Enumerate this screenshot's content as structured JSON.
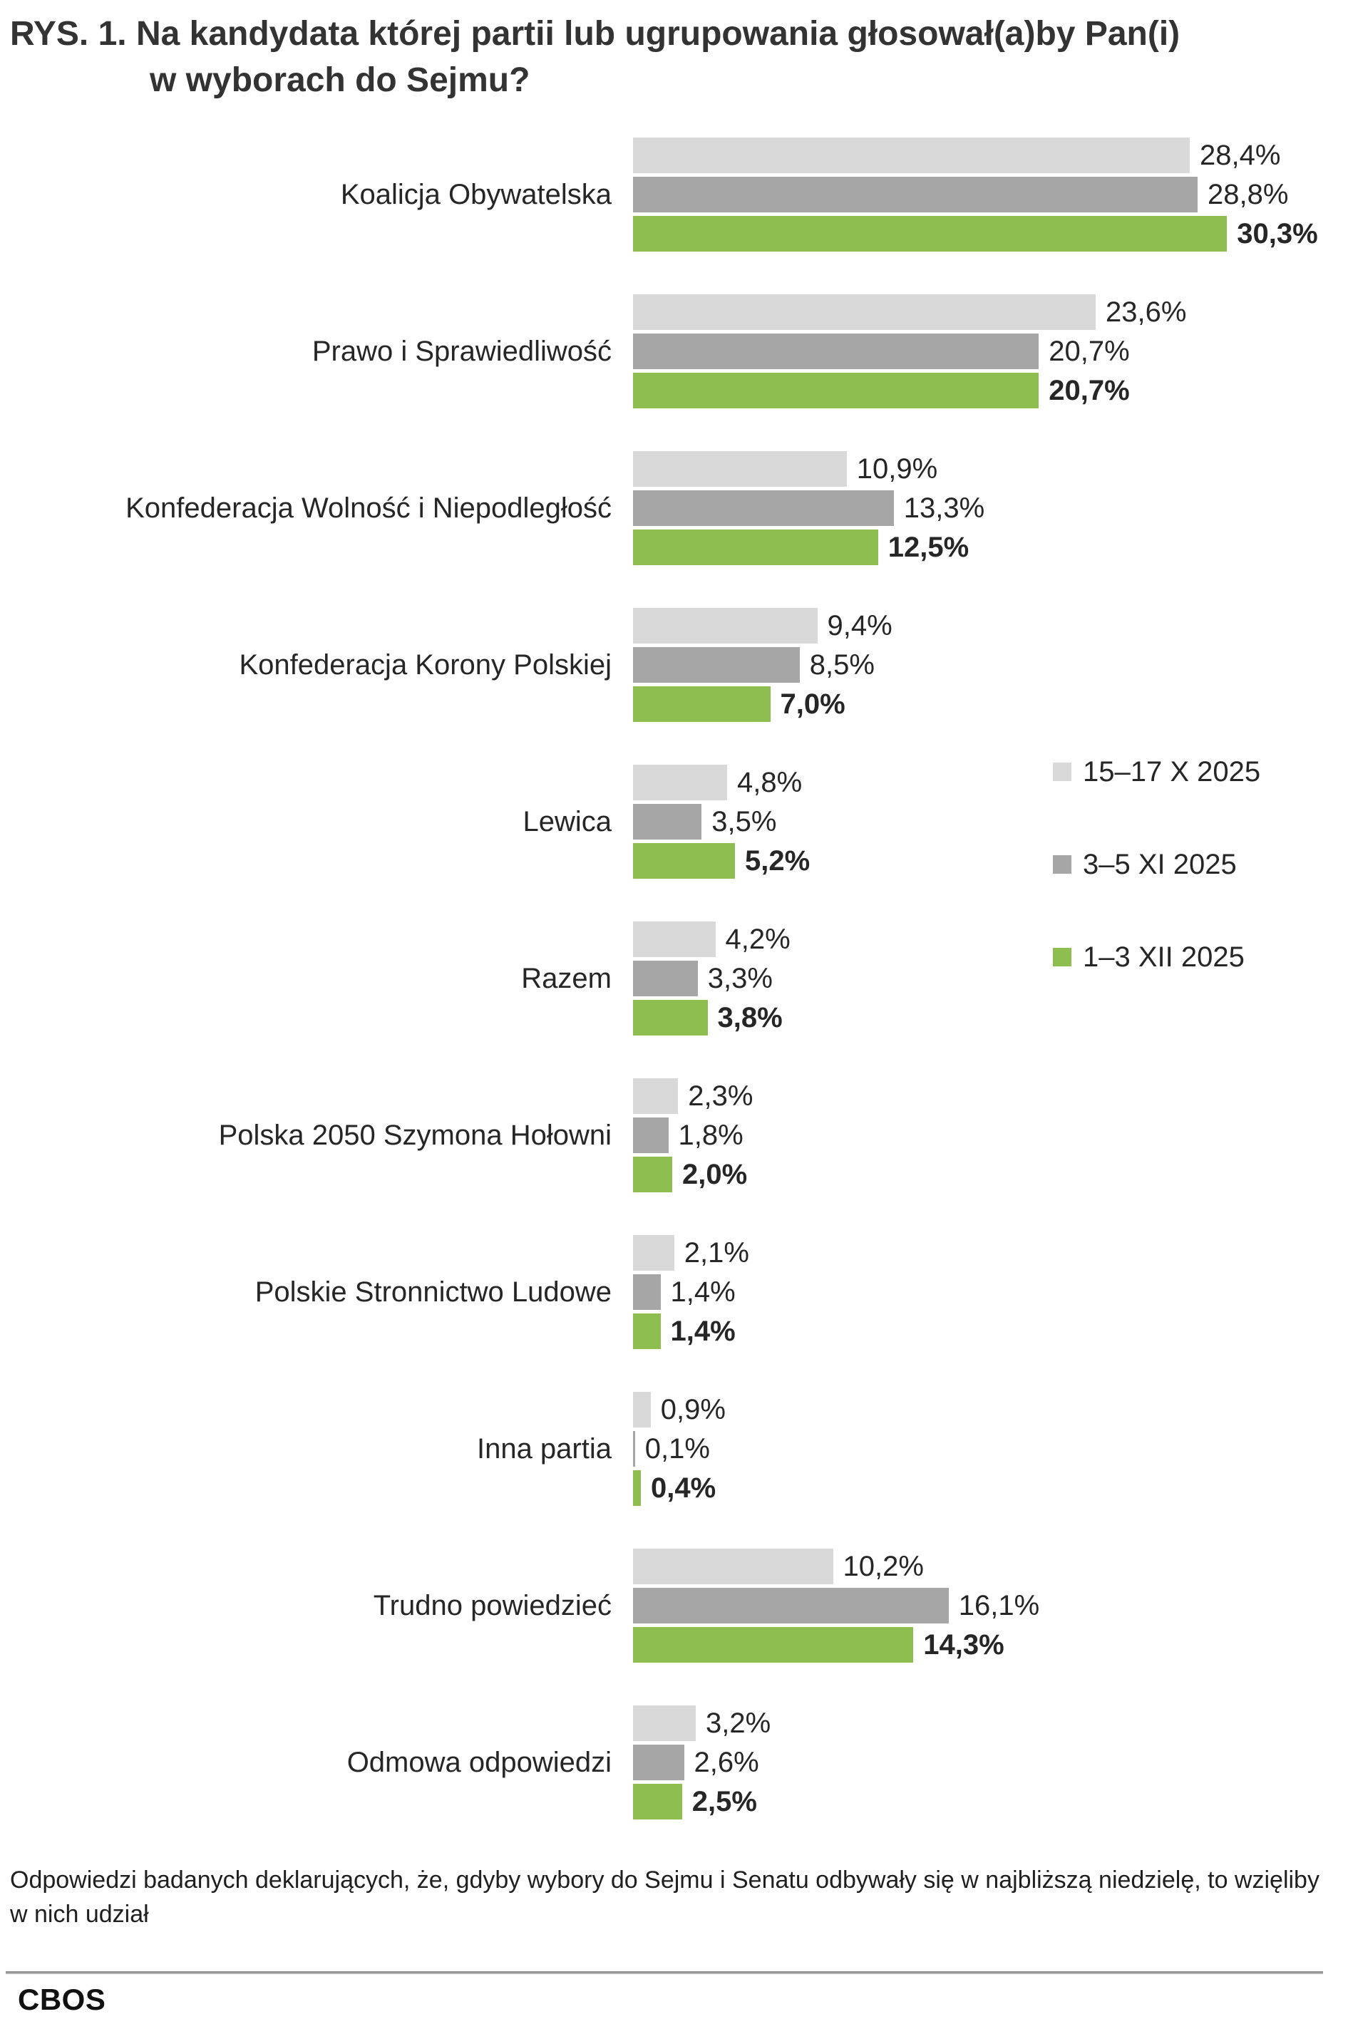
{
  "title": {
    "line1": "RYS. 1. Na kandydata której partii lub ugrupowania głosował(a)by Pan(i)",
    "line2": "w wyborach do Sejmu?"
  },
  "chart_data": {
    "type": "bar",
    "orientation": "horizontal",
    "unit": "%",
    "decimal_separator": ",",
    "xlim": [
      0,
      35
    ],
    "grid": false,
    "legend_position": "right-middle",
    "categories": [
      "Koalicja Obywatelska",
      "Prawo i Sprawiedliwość",
      "Konfederacja Wolność i Niepodległość",
      "Konfederacja Korony Polskiej",
      "Lewica",
      "Razem",
      "Polska 2050 Szymona Hołowni",
      "Polskie Stronnictwo Ludowe",
      "Inna partia",
      "Trudno powiedzieć",
      "Odmowa odpowiedzi"
    ],
    "series": [
      {
        "name": "15–17 X 2025",
        "color": "#d9d9d9",
        "value_label_style": "regular",
        "values": [
          28.4,
          23.6,
          10.9,
          9.4,
          4.8,
          4.2,
          2.3,
          2.1,
          0.9,
          10.2,
          3.2
        ]
      },
      {
        "name": "3–5 XI 2025",
        "color": "#a6a6a6",
        "value_label_style": "regular",
        "values": [
          28.8,
          20.7,
          13.3,
          8.5,
          3.5,
          3.3,
          1.8,
          1.4,
          0.1,
          16.1,
          2.6
        ]
      },
      {
        "name": "1–3 XII 2025",
        "color": "#8fbe50",
        "value_label_style": "bold",
        "values": [
          30.3,
          20.7,
          12.5,
          7.0,
          5.2,
          3.8,
          2.0,
          1.4,
          0.4,
          14.3,
          2.5
        ]
      }
    ]
  },
  "legend": {
    "items": [
      {
        "label": "15–17 X 2025",
        "color": "#d9d9d9"
      },
      {
        "label": "3–5 XI 2025",
        "color": "#a6a6a6"
      },
      {
        "label": "1–3 XII 2025",
        "color": "#8fbe50"
      }
    ]
  },
  "footnote": "Odpowiedzi badanych deklarujących, że, gdyby wybory do Sejmu i Senatu odbywały się w najbliższą niedzielę, to wzięliby w nich udział",
  "branding": {
    "logo_text": "CBOS"
  }
}
